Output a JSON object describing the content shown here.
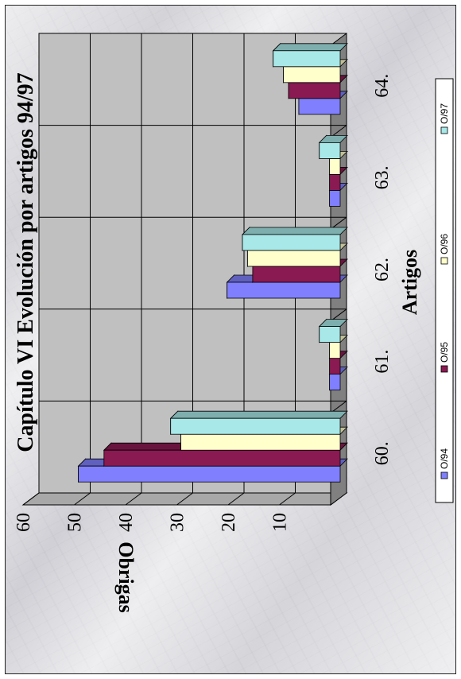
{
  "chart_data": {
    "type": "bar",
    "title": "Capítulo VI Evolución por artigos 94/97",
    "xlabel": "Artigos",
    "ylabel": "Obrigas",
    "categories": [
      "60.",
      "61.",
      "62.",
      "63.",
      "64."
    ],
    "ylim": [
      0,
      60
    ],
    "yticks": [
      10,
      20,
      30,
      40,
      50,
      60
    ],
    "series": [
      {
        "name": "O/94",
        "values": [
          52,
          3,
          23,
          3,
          9
        ]
      },
      {
        "name": "O/95",
        "values": [
          47,
          3,
          18,
          3,
          11
        ]
      },
      {
        "name": "O/96",
        "values": [
          32,
          3,
          19,
          3,
          12
        ]
      },
      {
        "name": "O/97",
        "values": [
          34,
          5,
          20,
          5,
          14
        ]
      }
    ],
    "legend_position": "right",
    "grid": true
  },
  "colors": {
    "O/94": "#8080ff",
    "O/95": "#8a1a52",
    "O/96": "#ffffcc",
    "O/97": "#a8e8e8",
    "wall": "#c0c0c0",
    "floor": "#808080"
  }
}
